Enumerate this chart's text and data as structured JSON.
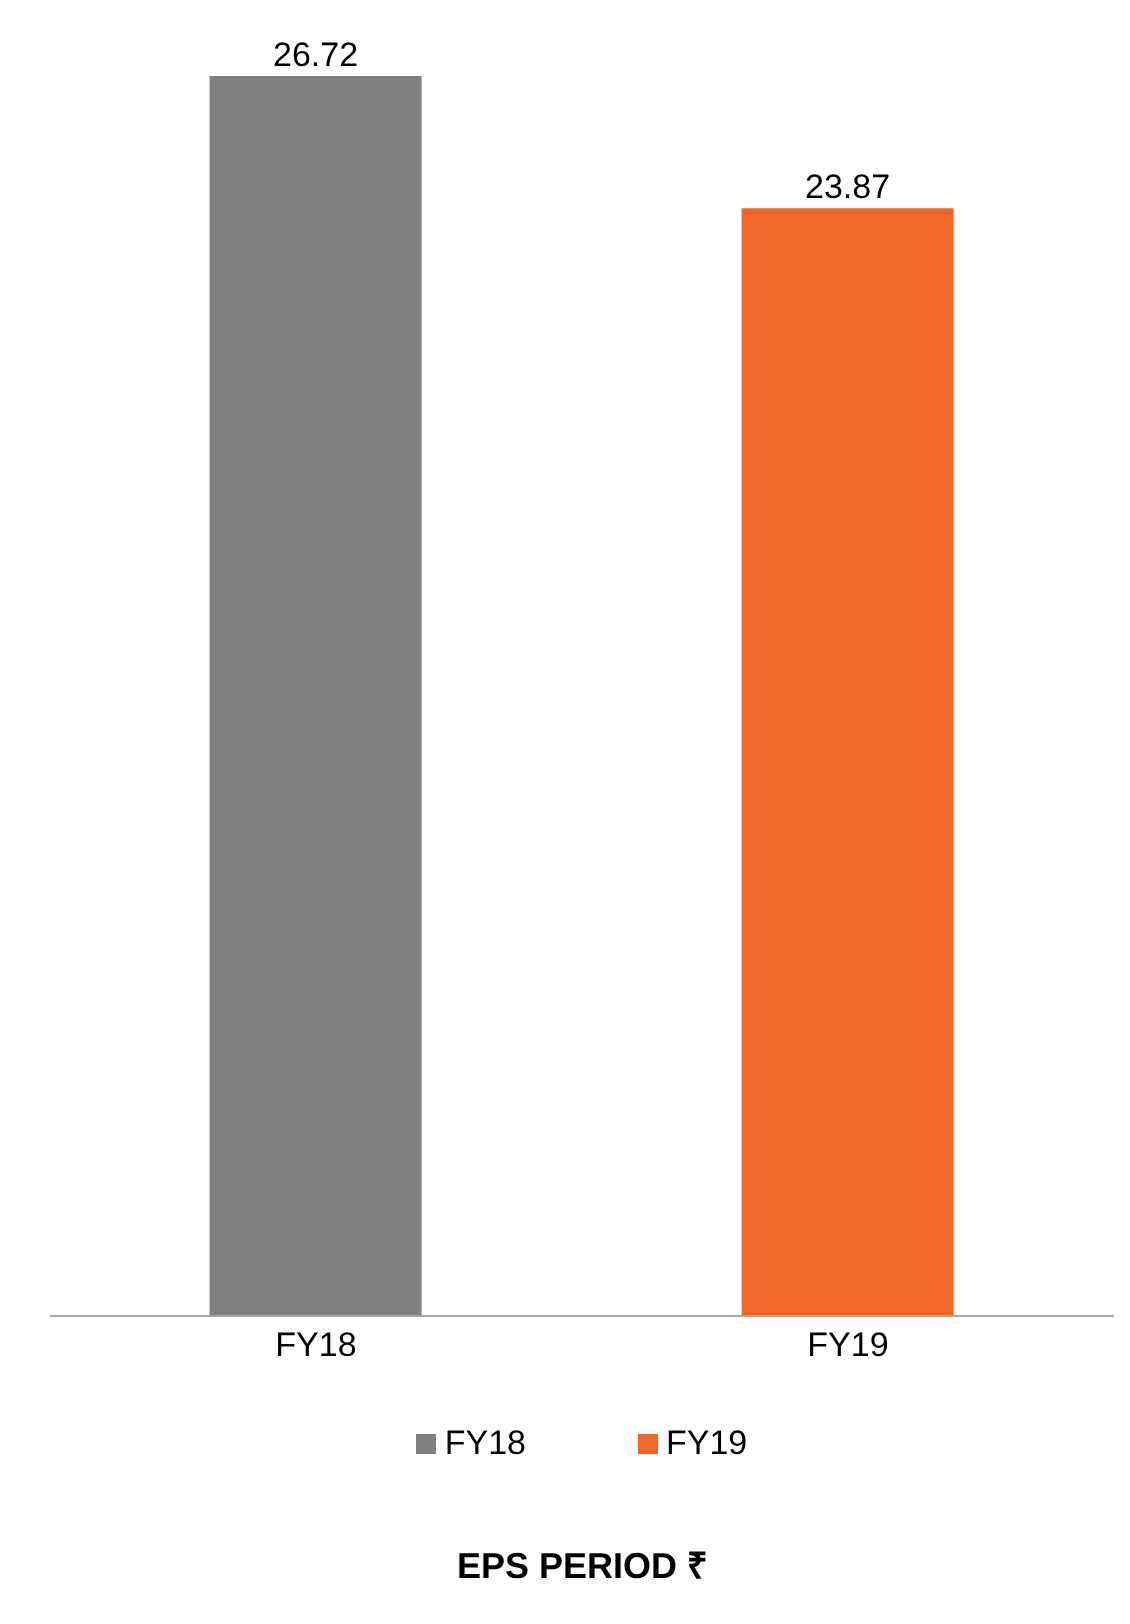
{
  "chart_data": {
    "type": "bar",
    "title": "EPS PERIOD ₹",
    "categories": [
      "FY18",
      "FY19"
    ],
    "stacked": true,
    "data_labels": true,
    "legend": "bottom",
    "grid": false,
    "series": [
      {
        "name": "FY18",
        "color": "#7f7f7f",
        "values": [
          26.72,
          null
        ]
      },
      {
        "name": "FY19",
        "color": "#ee6727",
        "values": [
          null,
          23.87
        ]
      }
    ]
  }
}
